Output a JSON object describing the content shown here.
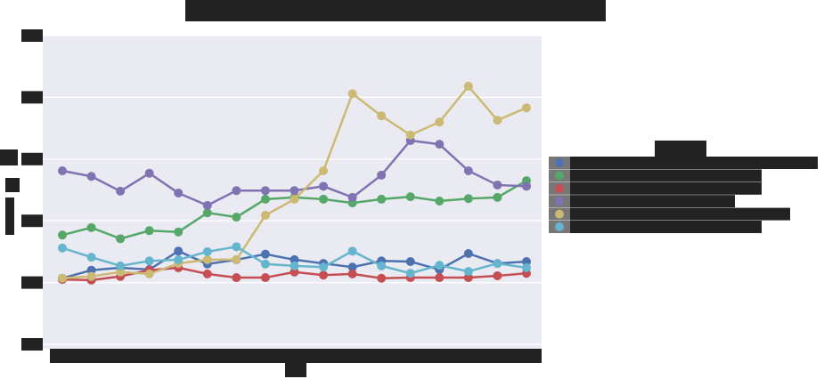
{
  "chart_data": {
    "type": "line",
    "categories": [
      null,
      null,
      null,
      null,
      null,
      null,
      null,
      null,
      null,
      null,
      null,
      null,
      null,
      null,
      null,
      null,
      null
    ],
    "series": [
      {
        "color": "#4c72b0",
        "values": [
          1.07,
          1.2,
          1.24,
          1.21,
          1.51,
          1.3,
          1.37,
          1.46,
          1.37,
          1.31,
          1.25,
          1.35,
          1.34,
          1.21,
          1.47,
          1.31,
          1.34
        ]
      },
      {
        "color": "#55a868",
        "values": [
          1.77,
          1.89,
          1.71,
          1.84,
          1.82,
          2.13,
          2.06,
          2.35,
          2.38,
          2.35,
          2.29,
          2.35,
          2.39,
          2.32,
          2.36,
          2.38,
          2.65
        ]
      },
      {
        "color": "#c44e52",
        "values": [
          1.05,
          1.04,
          1.1,
          1.2,
          1.24,
          1.14,
          1.08,
          1.08,
          1.17,
          1.12,
          1.14,
          1.07,
          1.08,
          1.08,
          1.08,
          1.11,
          1.15
        ]
      },
      {
        "color": "#8172b2",
        "values": [
          2.81,
          2.72,
          2.48,
          2.77,
          2.45,
          2.25,
          2.49,
          2.49,
          2.49,
          2.56,
          2.38,
          2.74,
          3.3,
          3.24,
          2.81,
          2.58,
          2.56
        ]
      },
      {
        "color": "#ccb974",
        "values": [
          1.07,
          1.1,
          1.17,
          1.14,
          1.31,
          1.37,
          1.37,
          2.09,
          2.35,
          2.81,
          4.06,
          3.7,
          3.39,
          3.6,
          4.18,
          3.63,
          3.83
        ]
      },
      {
        "color": "#64b5cd",
        "values": [
          1.56,
          1.41,
          1.27,
          1.35,
          1.37,
          1.5,
          1.58,
          1.3,
          1.27,
          1.25,
          1.51,
          1.27,
          1.15,
          1.28,
          1.18,
          1.31,
          1.24
        ]
      }
    ],
    "ylim": [
      0,
      5
    ],
    "yticks": [
      0,
      1,
      2,
      3,
      4,
      5
    ],
    "grid": true
  }
}
